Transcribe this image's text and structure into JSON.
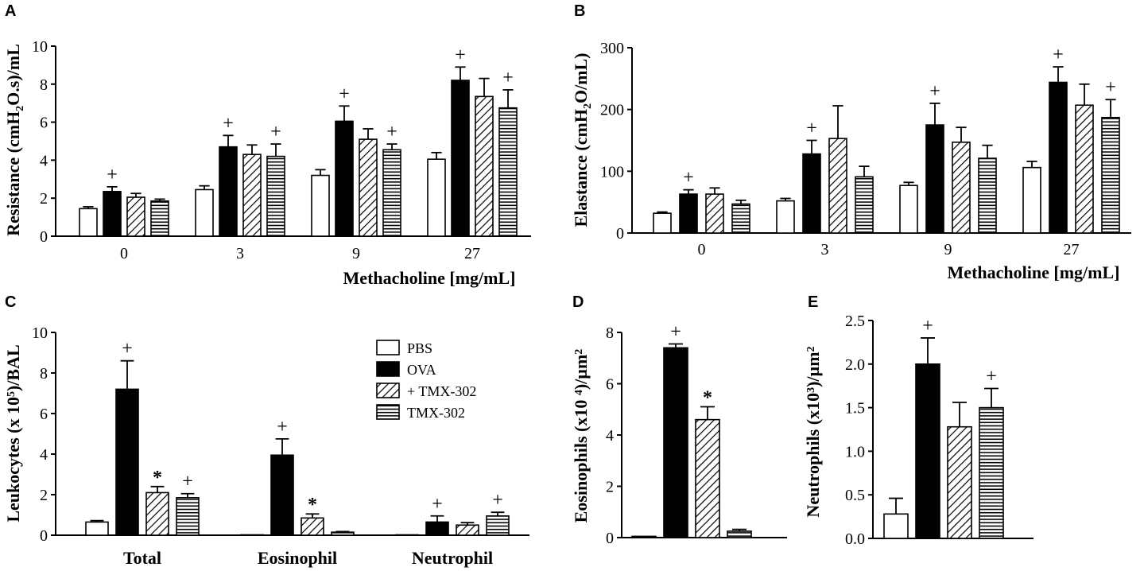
{
  "figure": {
    "legend": [
      {
        "name": "PBS",
        "pattern": "white"
      },
      {
        "name": "OVA",
        "pattern": "black"
      },
      {
        "name": "+ TMX-302",
        "pattern": "diagonal"
      },
      {
        "name": "TMX-302",
        "pattern": "horizontal"
      }
    ],
    "colors": {
      "fill_black": "#000000",
      "fill_white": "#ffffff",
      "stroke": "#000000"
    }
  },
  "chart_data": [
    {
      "panel": "A",
      "type": "bar",
      "title": "",
      "ylabel": "Resistance (cmH2O.s)/mL",
      "xlabel": "Methacholine [mg/mL]",
      "ylim": [
        0,
        10
      ],
      "yticks": [
        0,
        2,
        4,
        6,
        8,
        10
      ],
      "categories": [
        "0",
        "3",
        "9",
        "27"
      ],
      "series": [
        {
          "name": "PBS",
          "values": [
            1.45,
            2.45,
            3.2,
            4.05
          ],
          "errors": [
            0.1,
            0.2,
            0.3,
            0.35
          ],
          "sig": [
            "",
            "",
            "",
            ""
          ]
        },
        {
          "name": "OVA",
          "values": [
            2.35,
            4.7,
            6.05,
            8.2
          ],
          "errors": [
            0.25,
            0.6,
            0.8,
            0.7
          ],
          "sig": [
            "+",
            "+",
            "+",
            "+"
          ]
        },
        {
          "name": "+ TMX-302",
          "values": [
            2.05,
            4.3,
            5.1,
            7.35
          ],
          "errors": [
            0.2,
            0.5,
            0.55,
            0.95
          ],
          "sig": [
            "",
            "",
            "",
            ""
          ]
        },
        {
          "name": "TMX-302",
          "values": [
            1.85,
            4.2,
            4.55,
            6.75
          ],
          "errors": [
            0.1,
            0.65,
            0.3,
            0.95
          ],
          "sig": [
            "",
            "+",
            "+",
            "+"
          ]
        }
      ]
    },
    {
      "panel": "B",
      "type": "bar",
      "title": "",
      "ylabel": "Elastance (cmH2O/mL)",
      "xlabel": "Methacholine [mg/mL]",
      "ylim": [
        0,
        300
      ],
      "yticks": [
        0,
        100,
        200,
        300
      ],
      "categories": [
        "0",
        "3",
        "9",
        "27"
      ],
      "series": [
        {
          "name": "PBS",
          "values": [
            32,
            52,
            77,
            106
          ],
          "errors": [
            2,
            4,
            5,
            10
          ],
          "sig": [
            "",
            "",
            "",
            ""
          ]
        },
        {
          "name": "OVA",
          "values": [
            63,
            128,
            175,
            244
          ],
          "errors": [
            7,
            22,
            35,
            25
          ],
          "sig": [
            "+",
            "+",
            "+",
            "+"
          ]
        },
        {
          "name": "+ TMX-302",
          "values": [
            63,
            153,
            147,
            207
          ],
          "errors": [
            10,
            53,
            24,
            34
          ],
          "sig": [
            "",
            "",
            "",
            ""
          ]
        },
        {
          "name": "TMX-302",
          "values": [
            47,
            91,
            121,
            187
          ],
          "errors": [
            6,
            17,
            21,
            29
          ],
          "sig": [
            "",
            "",
            "",
            "+"
          ]
        }
      ]
    },
    {
      "panel": "C",
      "type": "bar",
      "title": "",
      "ylabel": "Leukocytes (x 10^5)/BAL",
      "xlabel": "",
      "ylim": [
        0,
        10
      ],
      "yticks": [
        0,
        2,
        4,
        6,
        8,
        10
      ],
      "categories": [
        "Total",
        "Eosinophil",
        "Neutrophil"
      ],
      "series": [
        {
          "name": "PBS",
          "values": [
            0.65,
            0.02,
            0.02
          ],
          "errors": [
            0.07,
            0,
            0
          ],
          "sig": [
            "",
            "",
            ""
          ]
        },
        {
          "name": "OVA",
          "values": [
            7.2,
            3.95,
            0.65
          ],
          "errors": [
            1.4,
            0.8,
            0.3
          ],
          "sig": [
            "+",
            "+",
            "+"
          ]
        },
        {
          "name": "+ TMX-302",
          "values": [
            2.1,
            0.85,
            0.5
          ],
          "errors": [
            0.3,
            0.2,
            0.12
          ],
          "sig": [
            "*",
            "*",
            ""
          ]
        },
        {
          "name": "TMX-302",
          "values": [
            1.85,
            0.15,
            0.95
          ],
          "errors": [
            0.2,
            0.03,
            0.18
          ],
          "sig": [
            "+",
            "",
            "+"
          ]
        }
      ]
    },
    {
      "panel": "D",
      "type": "bar",
      "title": "",
      "ylabel": "Eosinophils (x10^4)/µm^2",
      "xlabel": "",
      "ylim": [
        0,
        8
      ],
      "yticks": [
        0,
        2,
        4,
        6,
        8
      ],
      "categories": [
        "PBS",
        "OVA",
        "+ TMX-302",
        "TMX-302"
      ],
      "series": [
        {
          "name": "Eosinophils",
          "values": [
            0.05,
            7.4,
            4.6,
            0.25
          ],
          "errors": [
            0,
            0.15,
            0.5,
            0.07
          ],
          "sig": [
            "",
            "+",
            "*",
            ""
          ]
        }
      ]
    },
    {
      "panel": "E",
      "type": "bar",
      "title": "",
      "ylabel": "Neutrophils (x10^3)/µm^2",
      "xlabel": "",
      "ylim": [
        0,
        2.5
      ],
      "yticks": [
        "0.0",
        "0.5",
        "1.0",
        "1.5",
        "2.0",
        "2.5"
      ],
      "categories": [
        "PBS",
        "OVA",
        "+ TMX-302",
        "TMX-302"
      ],
      "series": [
        {
          "name": "Neutrophils",
          "values": [
            0.28,
            2.0,
            1.28,
            1.5
          ],
          "errors": [
            0.18,
            0.3,
            0.28,
            0.22
          ],
          "sig": [
            "",
            "+",
            "",
            "+"
          ]
        }
      ]
    }
  ]
}
